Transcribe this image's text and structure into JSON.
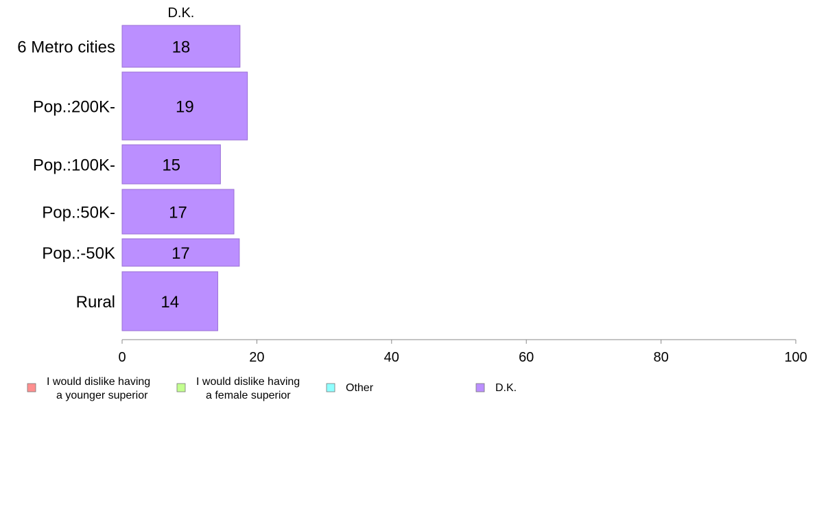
{
  "chart_data": {
    "type": "bar",
    "orientation": "horizontal",
    "stacked": true,
    "categories": [
      "6 Metro cities",
      "Pop.:200K-",
      "Pop.:100K-",
      "Pop.:50K-",
      "Pop.:-50K",
      "Rural"
    ],
    "series": [
      {
        "name": "I would dislike having a younger superior",
        "name_lines": [
          "I would dislike having",
          "a younger superior"
        ],
        "color": "#ff8f8f",
        "values": [
          0,
          0,
          0,
          0,
          0,
          0
        ]
      },
      {
        "name": "I would dislike having a female superior",
        "name_lines": [
          "I would dislike having",
          "a female superior"
        ],
        "color": "#c3ff8f",
        "values": [
          0,
          0,
          0,
          0,
          0,
          0
        ]
      },
      {
        "name": "Other",
        "name_lines": [
          "Other"
        ],
        "color": "#8fffff",
        "values": [
          0,
          0,
          0,
          0,
          0,
          0
        ]
      },
      {
        "name": "D.K.",
        "name_lines": [
          "D.K."
        ],
        "color": "#bb8fff",
        "values": [
          17.5,
          18.6,
          14.6,
          16.6,
          17.4,
          14.2
        ]
      }
    ],
    "data_labels": [
      "18",
      "19",
      "15",
      "17",
      "17",
      "14"
    ],
    "top_series_label": "D.K.",
    "xlim": [
      0,
      100
    ],
    "xticks": [
      0,
      20,
      40,
      60,
      80,
      100
    ],
    "grid": false,
    "legend_position": "bottom-left"
  }
}
